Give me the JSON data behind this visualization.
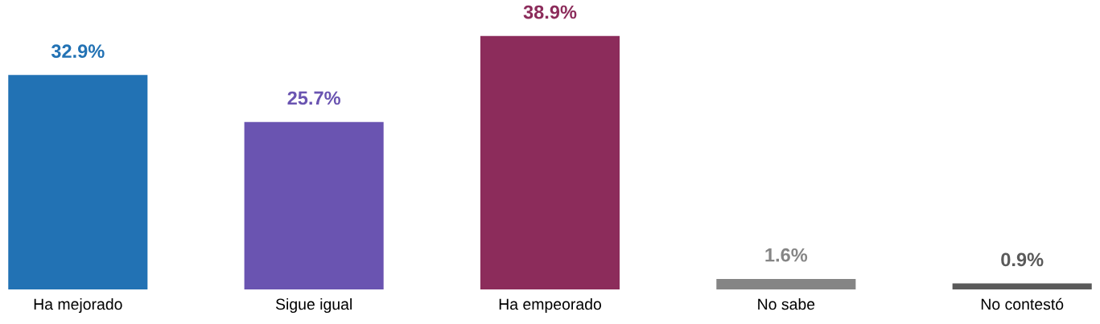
{
  "chart_data": {
    "type": "bar",
    "categories": [
      "Ha mejorado",
      "Sigue igual",
      "Ha empeorado",
      "No sabe",
      "No contestó"
    ],
    "values": [
      32.9,
      25.7,
      38.9,
      1.6,
      0.9
    ],
    "colors": [
      "#2272b4",
      "#6a54b1",
      "#8c2c5b",
      "#858585",
      "#5a5a5a"
    ],
    "value_labels": [
      "32.9%",
      "25.7%",
      "38.9%",
      "1.6%",
      "0.9%"
    ],
    "grid": false,
    "legend": false
  }
}
